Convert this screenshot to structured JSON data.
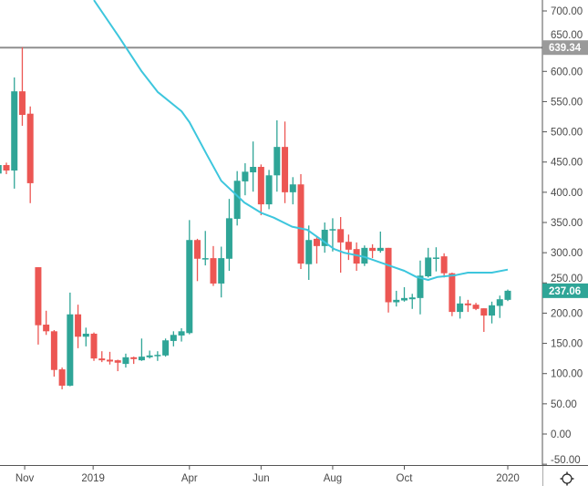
{
  "chart_data": {
    "type": "candlestick",
    "title": "",
    "xlabel": "",
    "ylabel": "",
    "ylim": [
      -50,
      700
    ],
    "y_ticks": [
      "-50.00",
      "0.00",
      "50.00",
      "100.00",
      "150.00",
      "200.00",
      "250.00",
      "300.00",
      "350.00",
      "400.00",
      "450.00",
      "500.00",
      "550.00",
      "600.00",
      "650.00",
      "700.00"
    ],
    "y_tick_values": [
      -50,
      0,
      50,
      100,
      150,
      200,
      250,
      300,
      350,
      400,
      450,
      500,
      550,
      600,
      650,
      700
    ],
    "x_ticks": [
      {
        "label": "Nov",
        "index": 3.3
      },
      {
        "label": "2019",
        "index": 11.9
      },
      {
        "label": "Apr",
        "index": 24
      },
      {
        "label": "Jun",
        "index": 33
      },
      {
        "label": "Aug",
        "index": 42
      },
      {
        "label": "Oct",
        "index": 51
      },
      {
        "label": "2020",
        "index": 64
      }
    ],
    "candles_ohlc": [
      [
        431,
        448,
        428,
        445
      ],
      [
        445,
        449,
        430,
        436
      ],
      [
        436,
        590,
        406,
        567
      ],
      [
        567,
        640,
        510,
        528
      ],
      [
        530,
        542,
        382,
        415
      ],
      [
        276,
        276,
        148,
        180
      ],
      [
        181,
        204,
        164,
        170
      ],
      [
        170,
        172,
        95,
        106
      ],
      [
        107,
        110,
        74,
        80
      ],
      [
        80,
        234,
        79,
        198
      ],
      [
        198,
        214,
        142,
        161
      ],
      [
        161,
        176,
        145,
        166
      ],
      [
        166,
        168,
        121,
        125
      ],
      [
        125,
        137,
        119,
        122
      ],
      [
        123,
        136,
        115,
        120
      ],
      [
        122,
        123,
        104,
        118
      ],
      [
        116,
        133,
        110,
        127
      ],
      [
        127,
        128,
        116,
        124
      ],
      [
        122,
        158,
        121,
        128
      ],
      [
        127,
        138,
        125,
        130
      ],
      [
        129,
        137,
        121,
        131
      ],
      [
        130,
        158,
        128,
        155
      ],
      [
        154,
        170,
        145,
        164
      ],
      [
        163,
        175,
        153,
        170
      ],
      [
        167,
        354,
        165,
        321
      ],
      [
        321,
        323,
        253,
        290
      ],
      [
        291,
        336,
        279,
        291
      ],
      [
        291,
        311,
        245,
        249
      ],
      [
        249,
        310,
        226,
        291
      ],
      [
        290,
        389,
        270,
        357
      ],
      [
        356,
        435,
        345,
        419
      ],
      [
        418,
        448,
        395,
        434
      ],
      [
        433,
        484,
        401,
        442
      ],
      [
        442,
        446,
        362,
        380
      ],
      [
        380,
        437,
        372,
        428
      ],
      [
        428,
        519,
        401,
        475
      ],
      [
        475,
        517,
        382,
        400
      ],
      [
        400,
        425,
        380,
        413
      ],
      [
        413,
        430,
        273,
        282
      ],
      [
        281,
        345,
        255,
        321
      ],
      [
        323,
        326,
        282,
        311
      ],
      [
        311,
        350,
        300,
        338
      ],
      [
        337,
        357,
        302,
        339
      ],
      [
        339,
        359,
        267,
        317
      ],
      [
        318,
        330,
        288,
        305
      ],
      [
        306,
        317,
        270,
        282
      ],
      [
        282,
        312,
        278,
        308
      ],
      [
        308,
        314,
        291,
        303
      ],
      [
        303,
        335,
        300,
        308
      ],
      [
        308,
        308,
        201,
        218
      ],
      [
        218,
        237,
        211,
        222
      ],
      [
        221,
        243,
        219,
        225
      ],
      [
        223,
        232,
        207,
        226
      ],
      [
        225,
        287,
        198,
        262
      ],
      [
        261,
        308,
        259,
        292
      ],
      [
        291,
        309,
        269,
        292
      ],
      [
        294,
        299,
        259,
        266
      ],
      [
        266,
        267,
        195,
        202
      ],
      [
        202,
        228,
        191,
        216
      ],
      [
        216,
        222,
        202,
        213
      ],
      [
        214,
        217,
        205,
        207
      ],
      [
        208,
        208,
        169,
        196
      ],
      [
        196,
        219,
        183,
        213
      ],
      [
        212,
        229,
        192,
        223
      ],
      [
        222,
        239,
        220,
        237.06
      ]
    ],
    "moving_average": [
      [
        12,
        718
      ],
      [
        15.1,
        658
      ],
      [
        18,
        600
      ],
      [
        20,
        566
      ],
      [
        23,
        534
      ],
      [
        24,
        516
      ],
      [
        26.2,
        462
      ],
      [
        28,
        419
      ],
      [
        30.9,
        383
      ],
      [
        33,
        366
      ],
      [
        34.6,
        358
      ],
      [
        36.9,
        343
      ],
      [
        38.8,
        338
      ],
      [
        40.4,
        323
      ],
      [
        42.2,
        306
      ],
      [
        43.4,
        300
      ],
      [
        46,
        293
      ],
      [
        49.5,
        277
      ],
      [
        51,
        270
      ],
      [
        52.5,
        260
      ],
      [
        54,
        255
      ],
      [
        55.2,
        260
      ],
      [
        57.5,
        263
      ],
      [
        59,
        267
      ],
      [
        62,
        267
      ],
      [
        64,
        272
      ]
    ],
    "horizontal_line": {
      "value": 639.34,
      "label": "639.34"
    },
    "last_price": {
      "value": 237.06,
      "label": "237.06"
    },
    "colors": {
      "up": "#2fa597",
      "down": "#ec5653",
      "ma": "#3dc6dd",
      "hline": "#9e9e9e",
      "axis": "#555555"
    }
  },
  "footer": {
    "settings_icon": "gear-icon"
  }
}
